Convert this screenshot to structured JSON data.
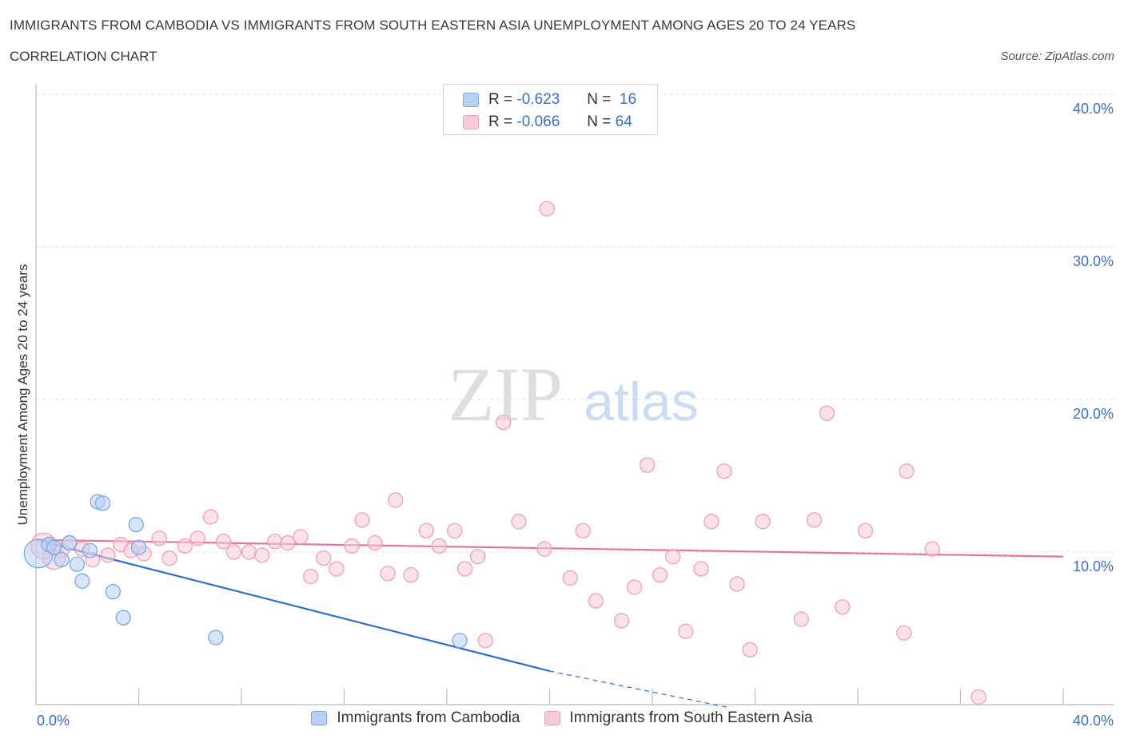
{
  "chart_data": {
    "type": "scatter",
    "title": "IMMIGRANTS FROM CAMBODIA VS IMMIGRANTS FROM SOUTH EASTERN ASIA UNEMPLOYMENT AMONG AGES 20 TO 24 YEARS",
    "subtitle": "CORRELATION CHART",
    "source": "Source: ZipAtlas.com",
    "ylabel": "Unemployment Among Ages 20 to 24 years",
    "xlim": [
      0,
      40
    ],
    "ylim": [
      0,
      40
    ],
    "x_tick_labels": {
      "left": "0.0%",
      "right": "40.0%"
    },
    "y_ticks": [
      10,
      20,
      30,
      40
    ],
    "y_tick_labels": [
      "10.0%",
      "20.0%",
      "30.0%",
      "40.0%"
    ],
    "watermark": {
      "zip": "ZIP",
      "atlas": "atlas"
    },
    "legend": {
      "rows": [
        {
          "r_label": "R =",
          "r_value": "-0.623",
          "n_label": "N =",
          "n_value": "16"
        },
        {
          "r_label": "R =",
          "r_value": "-0.066",
          "n_label": "N =",
          "n_value": "64"
        }
      ]
    },
    "series": [
      {
        "name": "Immigrants from Cambodia",
        "color": "#7aa8e6",
        "fill": "#b8d0f4",
        "line_color": "#2f6fcf",
        "points": [
          [
            0.1,
            9.9,
            18
          ],
          [
            0.5,
            10.5,
            9
          ],
          [
            0.7,
            10.3,
            9
          ],
          [
            1.0,
            9.5,
            9
          ],
          [
            1.3,
            10.6,
            9
          ],
          [
            1.6,
            9.2,
            9
          ],
          [
            1.8,
            8.1,
            9
          ],
          [
            2.1,
            10.1,
            9
          ],
          [
            2.4,
            13.3,
            9
          ],
          [
            2.6,
            13.2,
            9
          ],
          [
            3.0,
            7.4,
            9
          ],
          [
            3.4,
            5.7,
            9
          ],
          [
            3.9,
            11.8,
            9
          ],
          [
            4.0,
            10.3,
            9
          ],
          [
            7.0,
            4.4,
            9
          ],
          [
            16.5,
            4.2,
            9
          ]
        ],
        "trend": {
          "x": [
            0,
            20
          ],
          "y": [
            10.8,
            2.2
          ]
        },
        "trend_extension": {
          "x": [
            20,
            27
          ],
          "y": [
            2.2,
            -0.2
          ]
        }
      },
      {
        "name": "Immigrants from South Eastern Asia",
        "color": "#eea0b8",
        "fill": "#f7cbd8",
        "line_color": "#e8749a",
        "points": [
          [
            0.3,
            10.4,
            16
          ],
          [
            0.7,
            9.6,
            14
          ],
          [
            1.0,
            10.1,
            9
          ],
          [
            1.3,
            10.6,
            9
          ],
          [
            1.8,
            10.2,
            9
          ],
          [
            2.2,
            9.5,
            9
          ],
          [
            2.8,
            9.8,
            9
          ],
          [
            3.3,
            10.5,
            9
          ],
          [
            3.7,
            10.1,
            9
          ],
          [
            4.2,
            9.9,
            9
          ],
          [
            4.8,
            10.9,
            9
          ],
          [
            5.2,
            9.6,
            9
          ],
          [
            5.8,
            10.4,
            9
          ],
          [
            6.3,
            10.9,
            9
          ],
          [
            6.8,
            12.3,
            9
          ],
          [
            7.3,
            10.7,
            9
          ],
          [
            7.7,
            10.0,
            9
          ],
          [
            8.3,
            10.0,
            9
          ],
          [
            8.8,
            9.8,
            9
          ],
          [
            9.3,
            10.7,
            9
          ],
          [
            9.8,
            10.6,
            9
          ],
          [
            10.3,
            11.0,
            9
          ],
          [
            10.7,
            8.4,
            9
          ],
          [
            11.2,
            9.6,
            9
          ],
          [
            11.7,
            8.9,
            9
          ],
          [
            12.3,
            10.4,
            9
          ],
          [
            12.7,
            12.1,
            9
          ],
          [
            13.2,
            10.6,
            9
          ],
          [
            13.7,
            8.6,
            9
          ],
          [
            14.0,
            13.4,
            9
          ],
          [
            14.6,
            8.5,
            9
          ],
          [
            15.2,
            11.4,
            9
          ],
          [
            15.7,
            10.4,
            9
          ],
          [
            16.3,
            11.4,
            9
          ],
          [
            16.7,
            8.9,
            9
          ],
          [
            17.2,
            9.7,
            9
          ],
          [
            17.5,
            4.2,
            9
          ],
          [
            18.2,
            18.5,
            9
          ],
          [
            18.8,
            12.0,
            9
          ],
          [
            19.8,
            10.2,
            9
          ],
          [
            19.9,
            32.5,
            9
          ],
          [
            20.8,
            8.3,
            9
          ],
          [
            21.3,
            11.4,
            9
          ],
          [
            21.8,
            6.8,
            9
          ],
          [
            22.8,
            5.5,
            9
          ],
          [
            23.3,
            7.7,
            9
          ],
          [
            23.8,
            15.7,
            9
          ],
          [
            24.3,
            8.5,
            9
          ],
          [
            24.8,
            9.7,
            9
          ],
          [
            25.3,
            4.8,
            9
          ],
          [
            25.9,
            8.9,
            9
          ],
          [
            26.3,
            12.0,
            9
          ],
          [
            26.8,
            15.3,
            9
          ],
          [
            27.3,
            7.9,
            9
          ],
          [
            27.8,
            3.6,
            9
          ],
          [
            28.3,
            12.0,
            9
          ],
          [
            29.8,
            5.6,
            9
          ],
          [
            30.3,
            12.1,
            9
          ],
          [
            30.8,
            19.1,
            9
          ],
          [
            31.4,
            6.4,
            9
          ],
          [
            32.3,
            11.4,
            9
          ],
          [
            33.8,
            4.7,
            9
          ],
          [
            33.9,
            15.3,
            9
          ],
          [
            34.9,
            10.2,
            9
          ]
        ],
        "extra_points": [
          [
            36.7,
            0.5,
            9
          ]
        ],
        "trend": {
          "x": [
            0,
            40
          ],
          "y": [
            10.8,
            9.7
          ]
        }
      }
    ]
  }
}
